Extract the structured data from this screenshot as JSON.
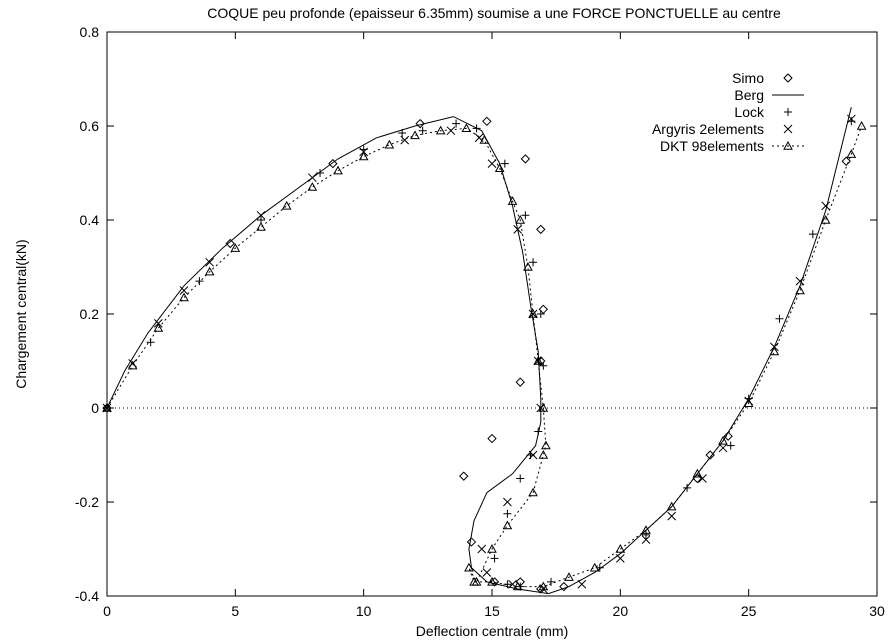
{
  "chart_data": {
    "type": "line",
    "title": "COQUE peu profonde (epaisseur 6.35mm) soumise a une FORCE PONCTUELLE au centre",
    "xlabel": "Deflection centrale (mm)",
    "ylabel": "Chargement central(kN)",
    "xlim": [
      0,
      30
    ],
    "ylim": [
      -0.4,
      0.8
    ],
    "x_ticks": [
      "0",
      "5",
      "10",
      "15",
      "20",
      "25",
      "30"
    ],
    "y_ticks": [
      "-0.4",
      "-0.2",
      "0",
      "0.2",
      "0.4",
      "0.6",
      "0.8"
    ],
    "x_tick_values": [
      0,
      5,
      10,
      15,
      20,
      25,
      30
    ],
    "y_tick_values": [
      -0.4,
      -0.2,
      0,
      0.2,
      0.4,
      0.6,
      0.8
    ],
    "grid": false,
    "zero_line": true,
    "legend_position": "top-right",
    "series": [
      {
        "name": "Simo",
        "marker": "diamond",
        "line": "none",
        "x": [
          0,
          4.8,
          8.8,
          12.2,
          14.8,
          16.3,
          16.9,
          17.0,
          16.9,
          16.1,
          15.0,
          13.9,
          14.2,
          15.1,
          16.1,
          16.9,
          17.8,
          23.0,
          23.5,
          24.2,
          28.8
        ],
        "y": [
          0,
          0.35,
          0.52,
          0.605,
          0.61,
          0.53,
          0.38,
          0.21,
          0.1,
          0.055,
          -0.065,
          -0.145,
          -0.285,
          -0.37,
          -0.37,
          -0.385,
          -0.38,
          -0.15,
          -0.1,
          -0.06,
          0.525
        ]
      },
      {
        "name": "Berg",
        "line": "solid",
        "marker": "none",
        "x": [
          0,
          0.7,
          1.6,
          3.0,
          4.5,
          6.0,
          7.5,
          9.0,
          10.5,
          12.0,
          13.5,
          14.6,
          15.3,
          15.8,
          16.2,
          16.5,
          16.8,
          16.9,
          16.9,
          16.7,
          15.8,
          14.8,
          14.3,
          14.1,
          14.2,
          14.8,
          16.0,
          17.2,
          18.0,
          19.0,
          20.0,
          21.0,
          22.0,
          23.0,
          24.0,
          25.0,
          26.0,
          27.0,
          28.0,
          29.0
        ],
        "y": [
          0,
          0.08,
          0.16,
          0.26,
          0.34,
          0.41,
          0.47,
          0.53,
          0.575,
          0.6,
          0.62,
          0.59,
          0.52,
          0.43,
          0.33,
          0.22,
          0.12,
          0.02,
          -0.03,
          -0.08,
          -0.14,
          -0.18,
          -0.24,
          -0.3,
          -0.34,
          -0.37,
          -0.385,
          -0.395,
          -0.38,
          -0.35,
          -0.31,
          -0.26,
          -0.21,
          -0.14,
          -0.07,
          0.02,
          0.13,
          0.26,
          0.42,
          0.64
        ]
      },
      {
        "name": "Lock",
        "marker": "plus",
        "line": "none",
        "x": [
          0,
          1.7,
          3.6,
          6.0,
          8.3,
          10.0,
          11.5,
          12.3,
          13.6,
          14.4,
          15.5,
          16.3,
          16.6,
          16.9,
          17.0,
          16.8,
          16.5,
          16.1,
          15.6,
          15.1,
          15.6,
          16.1,
          17.3,
          19.2,
          21.0,
          22.6,
          24.3,
          25.0,
          26.2,
          27.5,
          29.0
        ],
        "y": [
          0,
          0.14,
          0.27,
          0.4,
          0.5,
          0.55,
          0.585,
          0.59,
          0.605,
          0.595,
          0.52,
          0.41,
          0.31,
          0.2,
          0.09,
          -0.05,
          -0.1,
          -0.15,
          -0.225,
          -0.32,
          -0.375,
          -0.38,
          -0.37,
          -0.34,
          -0.27,
          -0.17,
          -0.08,
          0.02,
          0.19,
          0.37,
          0.61
        ]
      },
      {
        "name": "Argyris 2elements",
        "marker": "cross",
        "line": "none",
        "x": [
          0,
          1.0,
          2.0,
          3.0,
          4.0,
          6.0,
          8.0,
          10.0,
          11.6,
          13.4,
          14.5,
          15.0,
          16.0,
          16.6,
          16.8,
          16.9,
          16.6,
          15.6,
          14.6,
          14.8,
          15.8,
          17.0,
          18.5,
          20.0,
          21.0,
          22.0,
          23.2,
          24.0,
          25.0,
          26.0,
          27.0,
          28.0,
          29.0
        ],
        "y": [
          0,
          0.095,
          0.18,
          0.25,
          0.31,
          0.41,
          0.49,
          0.545,
          0.57,
          0.59,
          0.575,
          0.52,
          0.38,
          0.2,
          0.1,
          0.0,
          -0.1,
          -0.2,
          -0.3,
          -0.35,
          -0.375,
          -0.385,
          -0.375,
          -0.32,
          -0.28,
          -0.23,
          -0.15,
          -0.085,
          0.015,
          0.13,
          0.27,
          0.43,
          0.615
        ]
      },
      {
        "name": "DKT 98elements",
        "marker": "triangle",
        "line": "dotted",
        "x": [
          0,
          1.0,
          2.0,
          3.0,
          4.0,
          5.0,
          6.0,
          7.0,
          8.0,
          9.0,
          10.0,
          11.0,
          12.0,
          13.0,
          14.0,
          14.7,
          15.3,
          15.8,
          16.1,
          16.4,
          16.6,
          16.8,
          17.0,
          17.1,
          17.0,
          16.6,
          15.6,
          15.0,
          14.4,
          14.1,
          14.3,
          15.0,
          16.0,
          17.0,
          18.0,
          19.0,
          20.0,
          21.0,
          22.0,
          23.0,
          24.0,
          25.0,
          26.0,
          27.0,
          28.0,
          29.0,
          29.4
        ],
        "y": [
          0,
          0.09,
          0.17,
          0.235,
          0.29,
          0.34,
          0.385,
          0.43,
          0.47,
          0.505,
          0.535,
          0.56,
          0.58,
          0.59,
          0.595,
          0.57,
          0.51,
          0.44,
          0.4,
          0.3,
          0.2,
          0.1,
          0.0,
          -0.08,
          -0.1,
          -0.18,
          -0.25,
          -0.3,
          -0.37,
          -0.34,
          -0.37,
          -0.37,
          -0.38,
          -0.38,
          -0.36,
          -0.34,
          -0.3,
          -0.26,
          -0.21,
          -0.14,
          -0.07,
          0.01,
          0.12,
          0.25,
          0.4,
          0.54,
          0.6
        ]
      }
    ]
  }
}
